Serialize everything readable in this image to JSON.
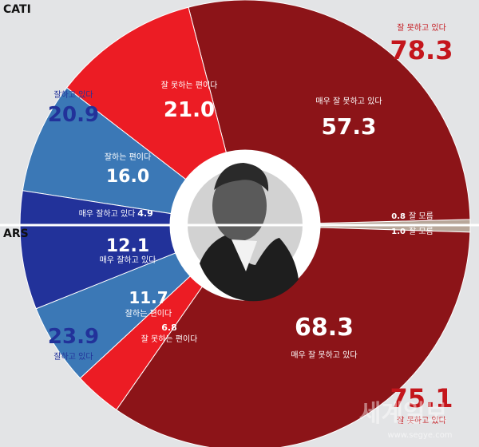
{
  "chart_data": [
    {
      "type": "pie",
      "title": "CATI",
      "slices": [
        {
          "name": "매우 잘 못하고 있다",
          "value": 57.3,
          "color": "#8c1418"
        },
        {
          "name": "잘 못하는 편이다",
          "value": 21.0,
          "color": "#ec1c24"
        },
        {
          "name": "잘하는 편이다",
          "value": 16.0,
          "color": "#3b78b6"
        },
        {
          "name": "매우 잘하고 있다",
          "value": 4.9,
          "color": "#22329a"
        },
        {
          "name": "잘 모름",
          "value": 0.8,
          "color": "#b8a79a"
        }
      ],
      "totals": {
        "negative": {
          "label": "잘 못하고 있다",
          "value": 78.3,
          "color": "#c4161c"
        },
        "positive": {
          "label": "잘하고 있다",
          "value": 20.9,
          "color": "#22329a"
        }
      }
    },
    {
      "type": "pie",
      "title": "ARS",
      "slices": [
        {
          "name": "매우 잘 못하고 있다",
          "value": 68.3,
          "color": "#8c1418"
        },
        {
          "name": "잘 못하는 편이다",
          "value": 6.8,
          "color": "#ec1c24"
        },
        {
          "name": "잘하는 편이다",
          "value": 11.7,
          "color": "#3b78b6"
        },
        {
          "name": "매우 잘하고 있다",
          "value": 12.1,
          "color": "#22329a"
        },
        {
          "name": "잘 모름",
          "value": 1.0,
          "color": "#b8a79a"
        }
      ],
      "totals": {
        "negative": {
          "label": "잘 못하고 있다",
          "value": 75.1,
          "color": "#c4161c"
        },
        "positive": {
          "label": "잘하고 있다",
          "value": 23.9,
          "color": "#22329a"
        }
      }
    }
  ],
  "watermark": "세계일보",
  "watermark_url": "www.segye.com"
}
